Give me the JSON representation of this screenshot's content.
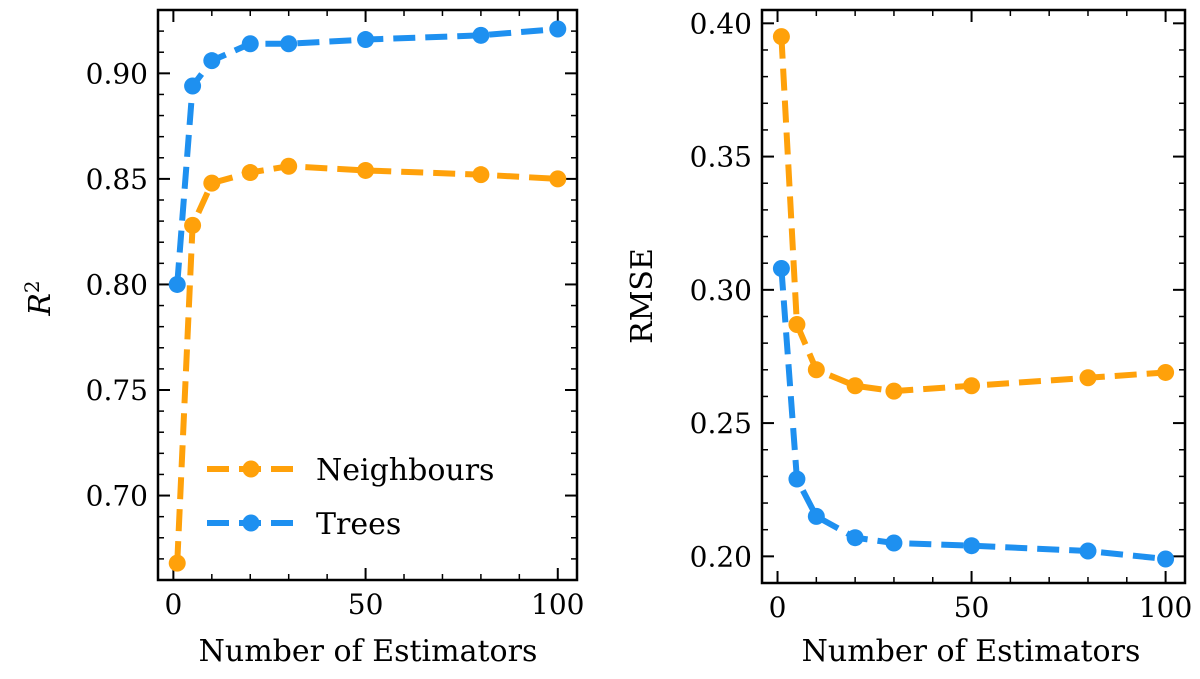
{
  "colors": {
    "neighbours": "#FFA10A",
    "trees": "#1E90F0",
    "axes": "#000000"
  },
  "legend": {
    "location": "lower-left",
    "entries": [
      "Neighbours",
      "Trees"
    ]
  },
  "chart_data": [
    {
      "type": "line",
      "title": "",
      "xlabel": "Number of Estimators",
      "ylabel": "R",
      "ylabel_superscript": "2",
      "xlim": [
        -4,
        105
      ],
      "ylim": [
        0.66,
        0.93
      ],
      "xticks": [
        0,
        50,
        100
      ],
      "xtick_labels": [
        "0",
        "50",
        "100"
      ],
      "yticks": [
        0.7,
        0.75,
        0.8,
        0.85,
        0.9
      ],
      "ytick_labels": [
        "0.70",
        "0.75",
        "0.80",
        "0.85",
        "0.90"
      ],
      "x": [
        1,
        5,
        10,
        20,
        30,
        50,
        80,
        100
      ],
      "series": [
        {
          "name": "Neighbours",
          "color_key": "neighbours",
          "values": [
            0.668,
            0.828,
            0.848,
            0.853,
            0.856,
            0.854,
            0.852,
            0.85
          ]
        },
        {
          "name": "Trees",
          "color_key": "trees",
          "values": [
            0.8,
            0.894,
            0.906,
            0.914,
            0.914,
            0.916,
            0.918,
            0.921
          ]
        }
      ]
    },
    {
      "type": "line",
      "title": "",
      "xlabel": "Number of Estimators",
      "ylabel": "RMSE",
      "xlim": [
        -4,
        105
      ],
      "ylim": [
        0.19,
        0.405
      ],
      "xticks": [
        0,
        50,
        100
      ],
      "xtick_labels": [
        "0",
        "50",
        "100"
      ],
      "yticks": [
        0.2,
        0.25,
        0.3,
        0.35,
        0.4
      ],
      "ytick_labels": [
        "0.20",
        "0.25",
        "0.30",
        "0.35",
        "0.40"
      ],
      "x": [
        1,
        5,
        10,
        20,
        30,
        50,
        80,
        100
      ],
      "series": [
        {
          "name": "Neighbours",
          "color_key": "neighbours",
          "values": [
            0.395,
            0.287,
            0.27,
            0.264,
            0.262,
            0.264,
            0.267,
            0.269
          ]
        },
        {
          "name": "Trees",
          "color_key": "trees",
          "values": [
            0.308,
            0.229,
            0.215,
            0.207,
            0.205,
            0.204,
            0.202,
            0.199
          ]
        }
      ]
    }
  ]
}
